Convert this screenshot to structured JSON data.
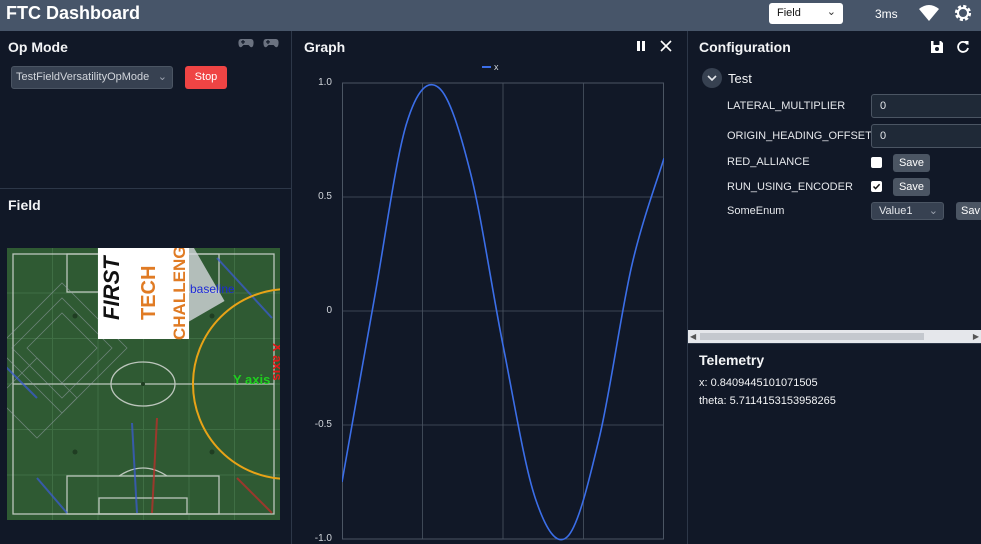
{
  "header": {
    "title": "FTC Dashboard",
    "layout_select": "Field",
    "latency": "3ms"
  },
  "opmode": {
    "title": "Op Mode",
    "selected": "TestFieldVersatilityOpMode",
    "stop_label": "Stop",
    "icons": [
      "gamepad-icon",
      "gamepad-icon"
    ]
  },
  "field": {
    "title": "Field",
    "overlay_texts": {
      "first": "FIRST",
      "tech": "TECH",
      "challenge": "CHALLENGE",
      "baseline": "baseline",
      "y_axis": "Y axis",
      "x_axis": "X axis"
    }
  },
  "graph": {
    "title": "Graph",
    "legend": "x",
    "y_ticks": [
      "1.0",
      "0.5",
      "0",
      "-0.5",
      "-1.0"
    ]
  },
  "configuration": {
    "title": "Configuration",
    "group": "Test",
    "rows": [
      {
        "label": "LATERAL_MULTIPLIER",
        "value": "0"
      },
      {
        "label": "ORIGIN_HEADING_OFFSET",
        "value": "0"
      },
      {
        "label": "RED_ALLIANCE",
        "checked": false,
        "save": "Save"
      },
      {
        "label": "RUN_USING_ENCODER",
        "checked": true,
        "save": "Save"
      },
      {
        "label": "SomeEnum",
        "value": "Value1",
        "save": "Sav"
      }
    ]
  },
  "telemetry": {
    "title": "Telemetry",
    "lines": [
      "x: 0.8409445101071505",
      "theta: 5.7114153153958265"
    ]
  },
  "chart_data": {
    "type": "line",
    "ylim": [
      -1.0,
      1.0
    ],
    "y_ticks": [
      1.0,
      0.5,
      0,
      -0.5,
      -1.0
    ],
    "series": [
      {
        "name": "x",
        "color": "#3b6ee8",
        "x": [
          0,
          0.1,
          0.2,
          0.3,
          0.4,
          0.5,
          0.6,
          0.7,
          0.8,
          0.9,
          1.0
        ],
        "values": [
          -0.75,
          0.05,
          0.82,
          0.98,
          0.6,
          -0.15,
          -0.82,
          -0.99,
          -0.55,
          0.2,
          0.67
        ]
      }
    ]
  },
  "colors": {
    "header_bg": "#475569",
    "stop": "#ef4444",
    "series": "#3b6ee8",
    "field_green": "#2f5a33"
  }
}
